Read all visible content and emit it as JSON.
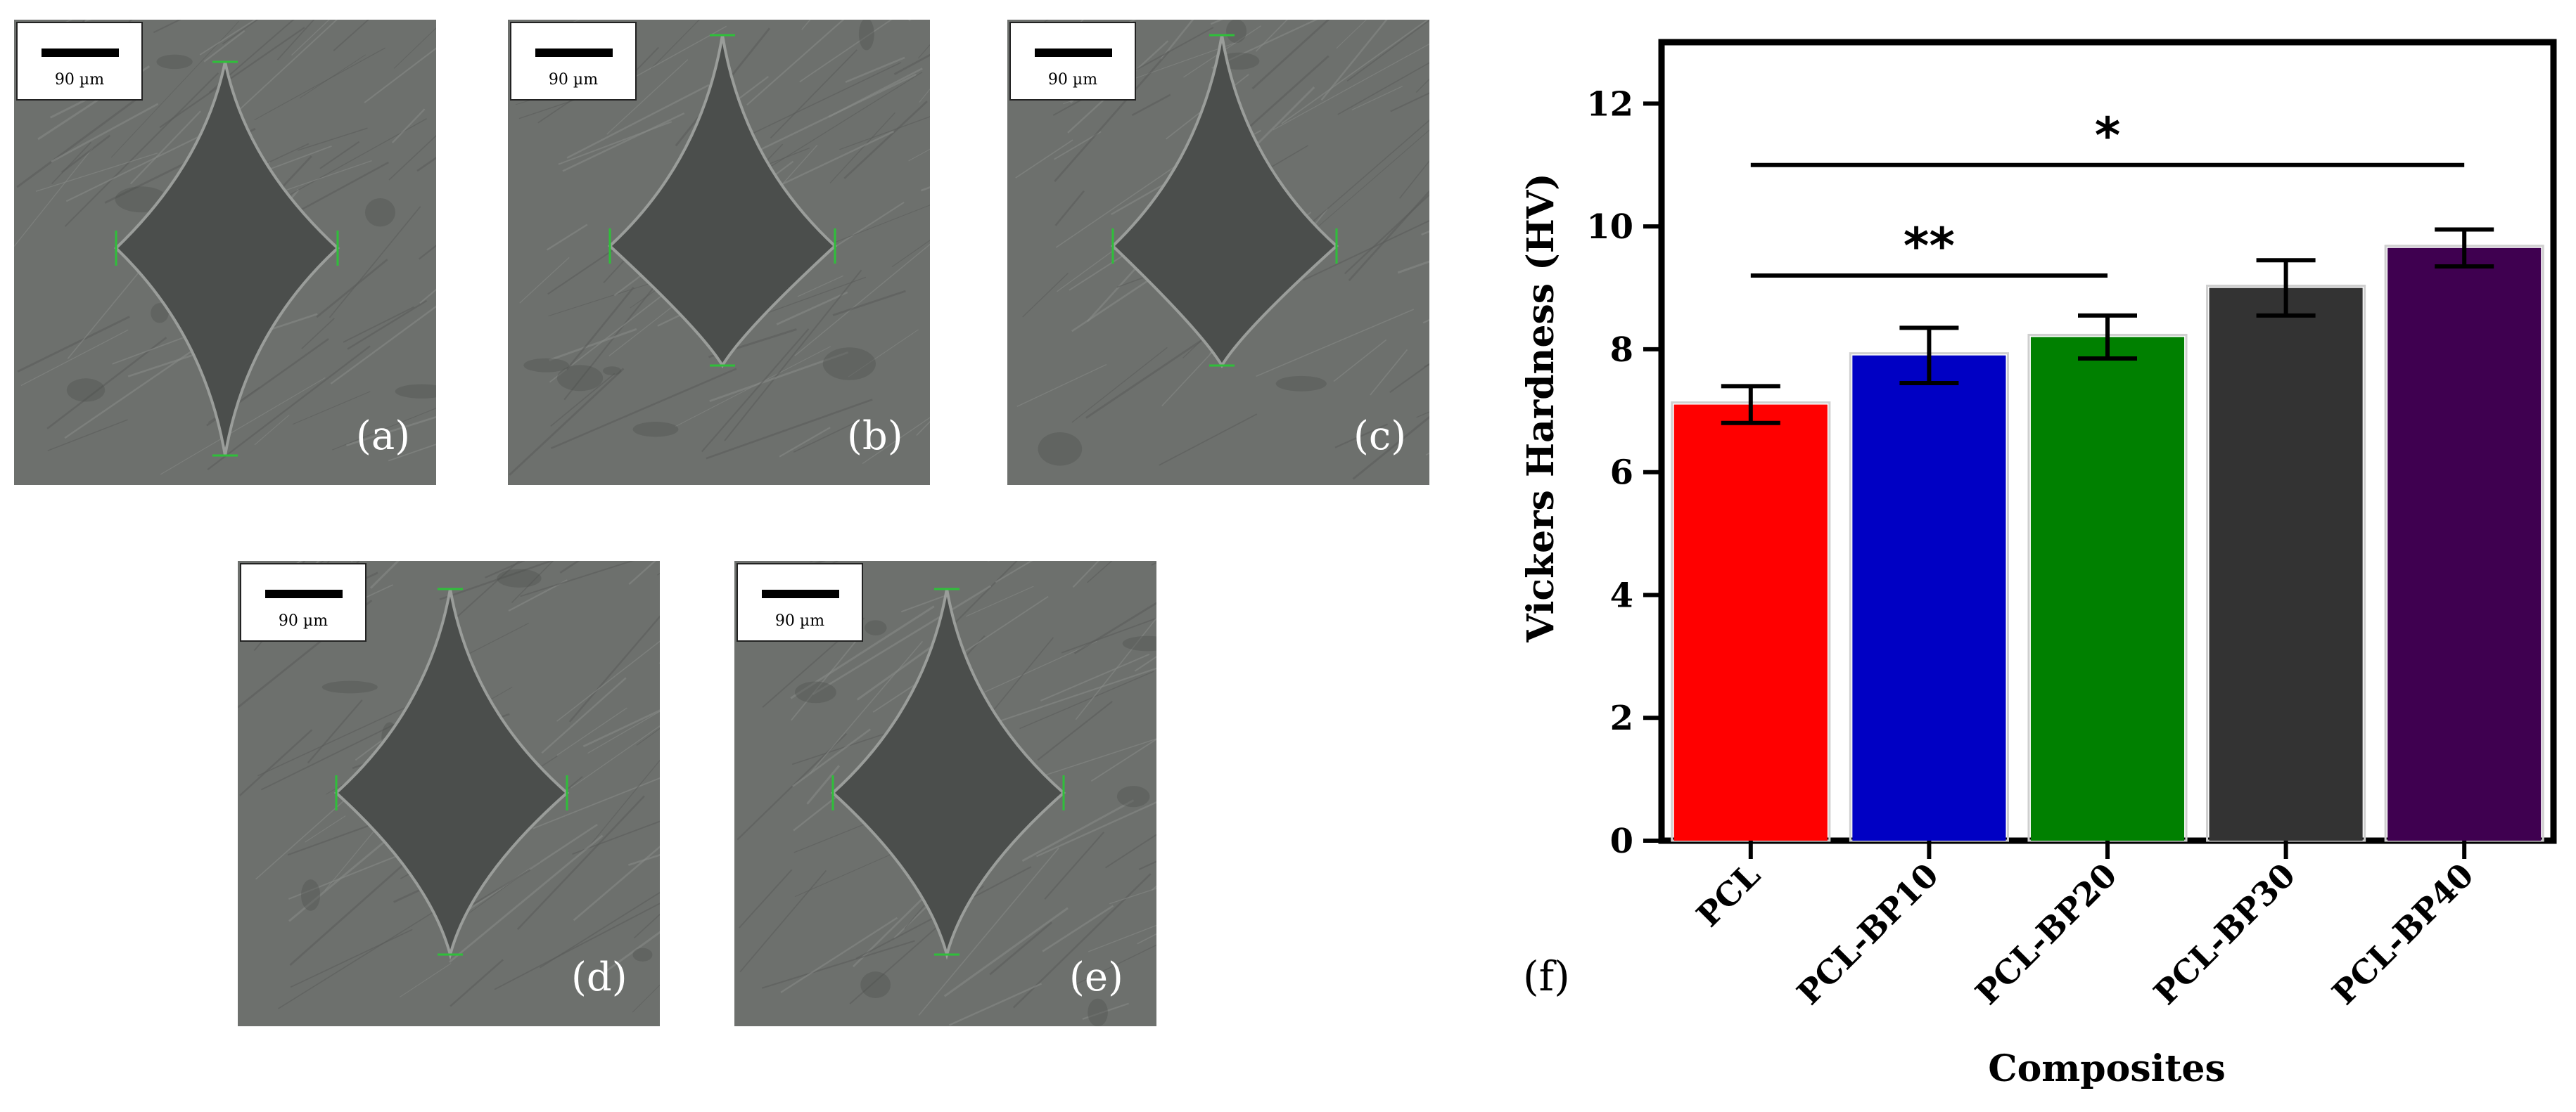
{
  "panels": [
    {
      "id": "a",
      "label": "(a)",
      "scale_text": "90 µm"
    },
    {
      "id": "b",
      "label": "(b)",
      "scale_text": "90 µm"
    },
    {
      "id": "c",
      "label": "(c)",
      "scale_text": "90 µm"
    },
    {
      "id": "d",
      "label": "(d)",
      "scale_text": "90 µm"
    },
    {
      "id": "e",
      "label": "(e)",
      "scale_text": "90 µm"
    }
  ],
  "chart_panel_label": "(f)",
  "chart_data": {
    "type": "bar",
    "categories": [
      "PCL",
      "PCL-BP10",
      "PCL-BP20",
      "PCL-BP30",
      "PCL-BP40"
    ],
    "values": [
      7.1,
      7.9,
      8.2,
      9.0,
      9.65
    ],
    "errors": [
      0.3,
      0.45,
      0.35,
      0.45,
      0.3
    ],
    "colors": [
      "#ff0000",
      "#0000c4",
      "#008000",
      "#333333",
      "#3f0050"
    ],
    "xlabel": "Composites",
    "ylabel": "Vickers Hardness (HV)",
    "ylim": [
      0,
      13
    ],
    "yticks": [
      0,
      2,
      4,
      6,
      8,
      10,
      12
    ],
    "significance": [
      {
        "from": "PCL",
        "to": "PCL-BP20",
        "label": "**",
        "y": 9.2
      },
      {
        "from": "PCL",
        "to": "PCL-BP40",
        "label": "*",
        "y": 11.0
      }
    ]
  }
}
